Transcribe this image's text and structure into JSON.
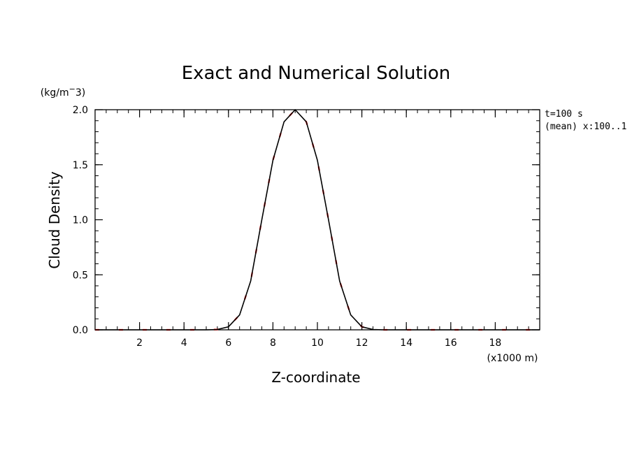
{
  "chart_data": {
    "type": "line",
    "title": "Exact and Numerical Solution",
    "xlabel": "Z-coordinate",
    "ylabel": "Cloud Density",
    "x_unit": "(x1000 m)",
    "y_unit": "(kg/m^3)",
    "xlim": [
      0,
      20
    ],
    "ylim": [
      0,
      2.0
    ],
    "x_ticks": [
      2,
      4,
      6,
      8,
      10,
      12,
      14,
      16,
      18
    ],
    "x_tick_labels": [
      "2",
      "4",
      "6",
      "8",
      "10",
      "12",
      "14",
      "16",
      "18"
    ],
    "y_ticks": [
      0,
      0.5,
      1.0,
      1.5,
      2.0
    ],
    "y_tick_labels": [
      "0.0",
      "0.5",
      "1.0",
      "1.5",
      "2.0"
    ],
    "grid": false,
    "annotations": [
      "t=100 s",
      "(mean) x:100..1"
    ],
    "series": [
      {
        "color": "#ff0000",
        "style": "dashed",
        "x": [
          0,
          0.5,
          1,
          1.5,
          2,
          2.5,
          3,
          3.5,
          4,
          4.5,
          5,
          5.5,
          6,
          6.5,
          7,
          7.5,
          8,
          8.5,
          9,
          9.5,
          10,
          10.5,
          11,
          11.5,
          12,
          12.5,
          13,
          13.5,
          14,
          14.5,
          15,
          15.5,
          16,
          16.5,
          17,
          17.5,
          18,
          18.5,
          19,
          19.5,
          20
        ],
        "values": [
          0,
          0,
          0,
          0,
          0,
          0,
          0,
          0,
          0,
          0,
          0,
          0.003,
          0.027,
          0.135,
          0.444,
          1.0,
          1.54,
          1.89,
          2.0,
          1.89,
          1.54,
          1.0,
          0.444,
          0.135,
          0.027,
          0.003,
          0,
          0,
          0,
          0,
          0,
          0,
          0,
          0,
          0,
          0,
          0,
          0,
          0,
          0,
          0
        ]
      },
      {
        "color": "#000000",
        "style": "solid",
        "x": [
          0,
          0.5,
          1,
          1.5,
          2,
          2.5,
          3,
          3.5,
          4,
          4.5,
          5,
          5.5,
          6,
          6.5,
          7,
          7.5,
          8,
          8.5,
          9,
          9.5,
          10,
          10.5,
          11,
          11.5,
          12,
          12.5,
          13,
          13.5,
          14,
          14.5,
          15,
          15.5,
          16,
          16.5,
          17,
          17.5,
          18,
          18.5,
          19,
          19.5,
          20
        ],
        "values": [
          0,
          0,
          0,
          0,
          0,
          0,
          0,
          0,
          0,
          0,
          0,
          0.003,
          0.027,
          0.135,
          0.444,
          1.0,
          1.54,
          1.89,
          2.0,
          1.89,
          1.54,
          1.0,
          0.444,
          0.135,
          0.027,
          0.003,
          0,
          0,
          0,
          0,
          0,
          0,
          0,
          0,
          0,
          0,
          0,
          0,
          0,
          0,
          0
        ]
      }
    ]
  }
}
